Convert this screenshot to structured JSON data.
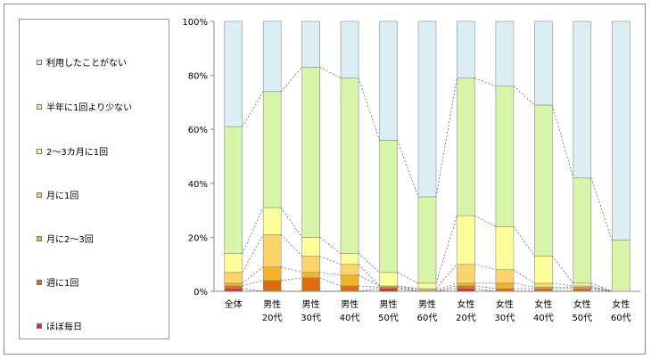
{
  "chart_data": {
    "type": "bar",
    "stacked": true,
    "percent": true,
    "title": "",
    "xlabel": "",
    "ylabel": "",
    "ylim": [
      0,
      100
    ],
    "yticks": [
      "0%",
      "20%",
      "40%",
      "60%",
      "80%",
      "100%"
    ],
    "categories": [
      {
        "line1": "全体",
        "line2": ""
      },
      {
        "line1": "男性",
        "line2": "20代"
      },
      {
        "line1": "男性",
        "line2": "30代"
      },
      {
        "line1": "男性",
        "line2": "40代"
      },
      {
        "line1": "男性",
        "line2": "50代"
      },
      {
        "line1": "男性",
        "line2": "60代"
      },
      {
        "line1": "女性",
        "line2": "20代"
      },
      {
        "line1": "女性",
        "line2": "30代"
      },
      {
        "line1": "女性",
        "line2": "40代"
      },
      {
        "line1": "女性",
        "line2": "50代"
      },
      {
        "line1": "女性",
        "line2": "60代"
      }
    ],
    "series": [
      {
        "name": "ほぼ毎日",
        "color": "#e0281e",
        "values": [
          1,
          0,
          0,
          0,
          1,
          0,
          1,
          0,
          0,
          0,
          0
        ]
      },
      {
        "name": "週に1回",
        "color": "#e36c0a",
        "values": [
          1,
          4,
          5,
          2,
          0.5,
          0,
          1,
          1,
          1,
          1,
          0
        ]
      },
      {
        "name": "月に2～3回",
        "color": "#f5b328",
        "values": [
          1,
          5,
          2,
          4,
          0.5,
          0.5,
          1,
          2,
          0.5,
          0.5,
          0
        ]
      },
      {
        "name": "月に1回",
        "color": "#fcd569",
        "values": [
          4,
          12,
          6,
          4,
          0,
          0.5,
          7,
          5,
          1.5,
          0.5,
          0
        ]
      },
      {
        "name": "2～3カ月に1回",
        "color": "#ffff99",
        "values": [
          7,
          10,
          7,
          4,
          5,
          2,
          18,
          16,
          10,
          1,
          0
        ]
      },
      {
        "name": "半年に1回より少ない",
        "color": "#d6f5a8",
        "values": [
          47,
          43,
          63,
          65,
          49,
          32,
          51,
          52,
          56,
          39,
          19
        ]
      },
      {
        "name": "利用したことがない",
        "color": "#dbeef4",
        "values": [
          39,
          26,
          17,
          21,
          44,
          65,
          21,
          24,
          31,
          58,
          81
        ]
      }
    ],
    "legend_position": "left",
    "connector_lines": true,
    "grid": false
  }
}
